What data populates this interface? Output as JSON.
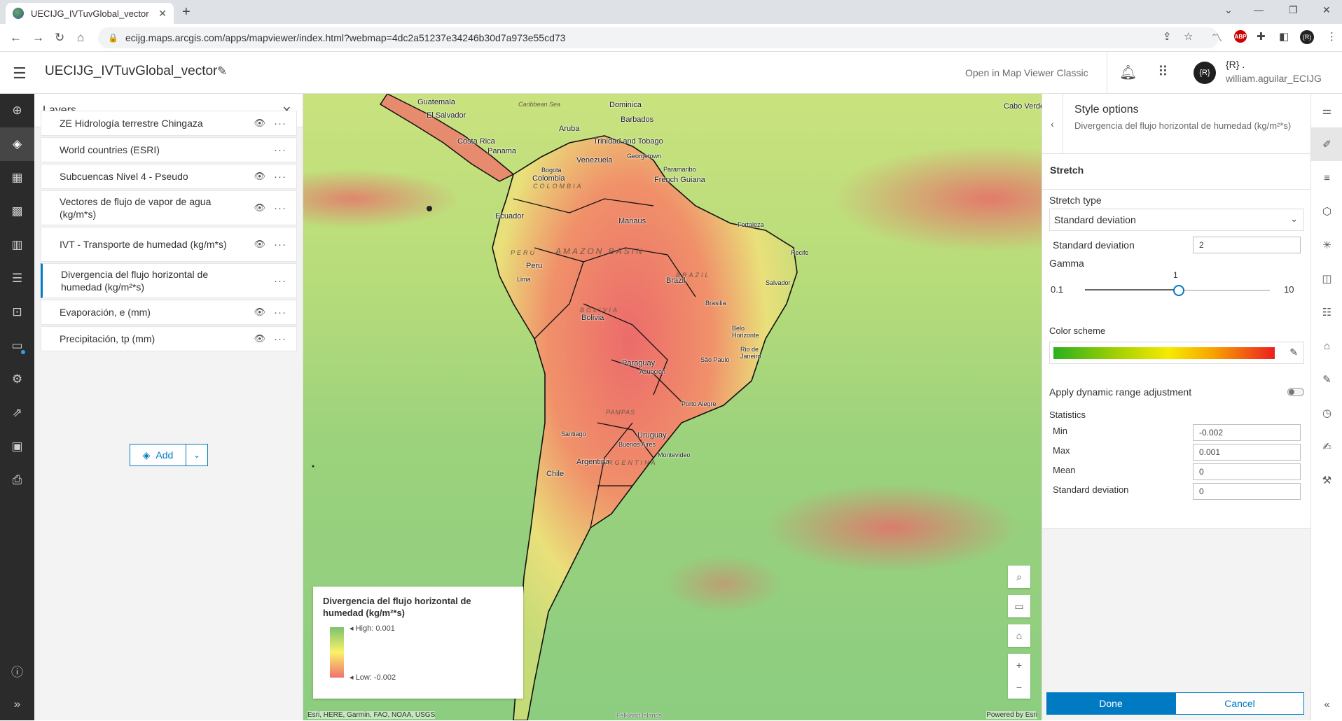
{
  "browser": {
    "tab_title": "UECIJG_IVTuvGlobal_vector",
    "tab_close": "✕",
    "new_tab": "+",
    "url": "ecijg.maps.arcgis.com/apps/mapviewer/index.html?webmap=4dc2a51237e34246b30d7a973e55cd73",
    "nav_back": "←",
    "nav_forward": "→",
    "reload": "↻",
    "home": "⌂",
    "win_min": "—",
    "win_max": "❐",
    "win_close": "✕",
    "win_dropdown": "⌄",
    "extensions": [
      "⇪",
      "☆",
      "〽",
      "ABP",
      "✚",
      "◧",
      "(R)",
      "⋮"
    ]
  },
  "app": {
    "title": "UECIJG_IVTuvGlobal_vector",
    "open_classic": "Open in Map Viewer Classic",
    "user_initials": "{R}",
    "user_name_line1": "{R} .",
    "user_name_line2": "william.aguilar_ECIJG"
  },
  "left_toolbar": {
    "icons": [
      "add-layer-icon",
      "layers-icon",
      "tables-icon",
      "basemap-icon",
      "charts-icon",
      "legend-icon",
      "bookmarks-icon",
      "sketch-icon",
      "map-properties-icon",
      "share-icon",
      "create-app-icon",
      "print-icon",
      "info-icon",
      "expand-icon"
    ]
  },
  "layers_panel": {
    "title": "Layers",
    "items": [
      {
        "label": "ZE Hidrología terrestre Chingaza",
        "visible": true
      },
      {
        "label": "World countries (ESRI)",
        "visible": false
      },
      {
        "label": "Subcuencas Nivel 4 - Pseudo",
        "visible": true
      },
      {
        "label": "Vectores de flujo de vapor de agua (kg/m*s)",
        "visible": true
      },
      {
        "label": "IVT - Transporte de humedad (kg/m*s)",
        "visible": true
      },
      {
        "label": "Divergencia del flujo horizontal de humedad (kg/m²*s)",
        "visible": false,
        "selected": true
      },
      {
        "label": "Evaporación, e (mm)",
        "visible": true
      },
      {
        "label": "Precipitación, tp (mm)",
        "visible": true
      }
    ],
    "add_label": "Add"
  },
  "map": {
    "labels": [
      "Guatemala",
      "El Salvador",
      "Dominica",
      "Barbados",
      "Caribbean Sea",
      "Cabo Verde",
      "Aruba",
      "Trinidad and Tobago",
      "Costa Rica",
      "Panama",
      "Venezuela",
      "Georgetown",
      "Paramaribo",
      "Bogota",
      "Colombia",
      "COLOMBIA",
      "French Guiana",
      "Ecuador",
      "Manaus",
      "Fortaleza",
      "Recife",
      "AMAZON BASIN",
      "PERU",
      "Peru",
      "Lima",
      "Brazil",
      "BRAZIL",
      "Salvador",
      "Bolivia",
      "BOLIVIA",
      "Brasilia",
      "Belo Horizonte",
      "Rio de Janeiro",
      "São Paulo",
      "Paraguay",
      "Asuncion",
      "Porto Alegre",
      "Santiago",
      "Uruguay",
      "Buenos Aires",
      "Montevideo",
      "Argentina",
      "ARGENTINA",
      "PAMPAS",
      "Chile",
      "Falkland Islands"
    ],
    "attribution_left": "Esri, HERE, Garmin, FAO, NOAA, USGS",
    "attribution_right": "Powered by Esri",
    "legend": {
      "title": "Divergencia del flujo horizontal de humedad (kg/m²*s)",
      "high": "High: 0.001",
      "low": "Low: -0.002"
    },
    "controls": [
      "search-icon",
      "screen-icon",
      "home-icon",
      "zoom-in-icon",
      "zoom-out-icon"
    ]
  },
  "style_panel": {
    "title": "Style options",
    "subtitle": "Divergencia del flujo horizontal de humedad (kg/m²*s)",
    "section": "Stretch",
    "stretch_type_label": "Stretch type",
    "stretch_type_value": "Standard deviation",
    "std_dev_label": "Standard deviation",
    "std_dev_value": "2",
    "gamma_label": "Gamma",
    "gamma_min": "0.1",
    "gamma_max": "10",
    "gamma_value": "1",
    "gamma_fraction": 0.5,
    "color_scheme_label": "Color scheme",
    "color_ramp": [
      "#2ab01e",
      "#a8d200",
      "#f7ea00",
      "#f7a400",
      "#ec1f1f"
    ],
    "dynamic_range_label": "Apply dynamic range adjustment",
    "dynamic_range_on": false,
    "statistics_label": "Statistics",
    "stats": [
      {
        "label": "Min",
        "value": "-0.002"
      },
      {
        "label": "Max",
        "value": "0.001"
      },
      {
        "label": "Mean",
        "value": "0"
      },
      {
        "label": "Standard deviation",
        "value": "0"
      }
    ],
    "done": "Done",
    "cancel": "Cancel"
  },
  "right_toolbar": {
    "icons": [
      "properties-icon",
      "styles-icon",
      "filter-icon",
      "effects-icon",
      "clustering-icon",
      "popups-icon",
      "fields-icon",
      "labels-icon",
      "edit-icon",
      "time-icon",
      "sketch-icon",
      "config-icon",
      "collapse-icon"
    ]
  }
}
